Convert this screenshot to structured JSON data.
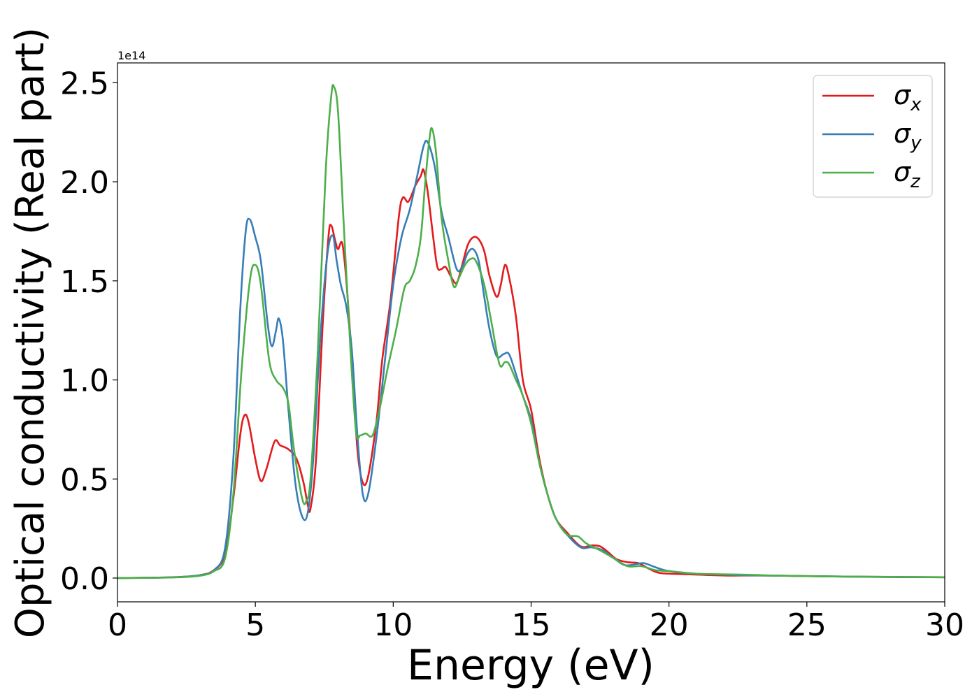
{
  "chart_data": {
    "type": "line",
    "xlabel": "Energy (eV)",
    "ylabel": "Optical conductivity (Real part)",
    "offset_label": "1e14",
    "scale": 100000000000000.0,
    "xlim": [
      0,
      30
    ],
    "ylim": [
      -0.12,
      2.6
    ],
    "xticks": [
      0,
      5,
      10,
      15,
      20,
      25,
      30
    ],
    "xtick_labels": [
      "0",
      "5",
      "10",
      "15",
      "20",
      "25",
      "30"
    ],
    "yticks": [
      0.0,
      0.5,
      1.0,
      1.5,
      2.0,
      2.5
    ],
    "ytick_labels": [
      "0.0",
      "0.5",
      "1.0",
      "1.5",
      "2.0",
      "2.5"
    ],
    "grid": false,
    "legend_position": "top-right",
    "series": [
      {
        "name": "σx",
        "label_base": "σ",
        "label_sub": "x",
        "color": "#e41a1c",
        "points": [
          [
            0,
            0
          ],
          [
            2,
            0.004
          ],
          [
            3,
            0.015
          ],
          [
            3.5,
            0.04
          ],
          [
            3.9,
            0.12
          ],
          [
            4.2,
            0.4
          ],
          [
            4.45,
            0.72
          ],
          [
            4.6,
            0.82
          ],
          [
            4.75,
            0.79
          ],
          [
            5.0,
            0.6
          ],
          [
            5.2,
            0.49
          ],
          [
            5.4,
            0.55
          ],
          [
            5.7,
            0.69
          ],
          [
            5.9,
            0.67
          ],
          [
            6.2,
            0.65
          ],
          [
            6.5,
            0.6
          ],
          [
            6.75,
            0.48
          ],
          [
            6.9,
            0.37
          ],
          [
            7.0,
            0.35
          ],
          [
            7.2,
            0.6
          ],
          [
            7.45,
            1.3
          ],
          [
            7.65,
            1.72
          ],
          [
            7.75,
            1.78
          ],
          [
            7.9,
            1.7
          ],
          [
            8.0,
            1.66
          ],
          [
            8.15,
            1.69
          ],
          [
            8.3,
            1.5
          ],
          [
            8.5,
            1.1
          ],
          [
            8.7,
            0.65
          ],
          [
            8.9,
            0.48
          ],
          [
            9.1,
            0.52
          ],
          [
            9.4,
            0.8
          ],
          [
            9.6,
            1.1
          ],
          [
            9.9,
            1.4
          ],
          [
            10.2,
            1.82
          ],
          [
            10.35,
            1.92
          ],
          [
            10.55,
            1.9
          ],
          [
            10.8,
            1.98
          ],
          [
            11.0,
            2.03
          ],
          [
            11.1,
            2.06
          ],
          [
            11.25,
            1.95
          ],
          [
            11.45,
            1.72
          ],
          [
            11.6,
            1.57
          ],
          [
            11.75,
            1.56
          ],
          [
            11.9,
            1.57
          ],
          [
            12.1,
            1.52
          ],
          [
            12.3,
            1.49
          ],
          [
            12.5,
            1.58
          ],
          [
            12.7,
            1.68
          ],
          [
            12.9,
            1.72
          ],
          [
            13.1,
            1.71
          ],
          [
            13.3,
            1.65
          ],
          [
            13.5,
            1.52
          ],
          [
            13.75,
            1.42
          ],
          [
            13.9,
            1.48
          ],
          [
            14.05,
            1.58
          ],
          [
            14.2,
            1.52
          ],
          [
            14.45,
            1.32
          ],
          [
            14.7,
            1.0
          ],
          [
            15.0,
            0.85
          ],
          [
            15.3,
            0.6
          ],
          [
            15.6,
            0.42
          ],
          [
            15.9,
            0.3
          ],
          [
            16.3,
            0.23
          ],
          [
            16.8,
            0.16
          ],
          [
            17.2,
            0.165
          ],
          [
            17.5,
            0.16
          ],
          [
            17.8,
            0.13
          ],
          [
            18.1,
            0.095
          ],
          [
            18.5,
            0.08
          ],
          [
            18.9,
            0.075
          ],
          [
            19.3,
            0.045
          ],
          [
            19.7,
            0.025
          ],
          [
            20.5,
            0.02
          ],
          [
            22,
            0.013
          ],
          [
            23,
            0.013
          ],
          [
            24,
            0.012
          ],
          [
            26,
            0.008
          ],
          [
            28,
            0.006
          ],
          [
            30,
            0.004
          ]
        ]
      },
      {
        "name": "σy",
        "label_base": "σ",
        "label_sub": "y",
        "color": "#377eb8",
        "points": [
          [
            0,
            0
          ],
          [
            2,
            0.004
          ],
          [
            3,
            0.015
          ],
          [
            3.5,
            0.04
          ],
          [
            3.9,
            0.15
          ],
          [
            4.2,
            0.6
          ],
          [
            4.45,
            1.35
          ],
          [
            4.65,
            1.75
          ],
          [
            4.8,
            1.81
          ],
          [
            5.0,
            1.72
          ],
          [
            5.2,
            1.6
          ],
          [
            5.45,
            1.28
          ],
          [
            5.6,
            1.17
          ],
          [
            5.75,
            1.25
          ],
          [
            5.85,
            1.31
          ],
          [
            6.0,
            1.2
          ],
          [
            6.2,
            0.85
          ],
          [
            6.45,
            0.48
          ],
          [
            6.7,
            0.31
          ],
          [
            6.9,
            0.33
          ],
          [
            7.1,
            0.6
          ],
          [
            7.35,
            1.2
          ],
          [
            7.6,
            1.62
          ],
          [
            7.8,
            1.73
          ],
          [
            7.95,
            1.6
          ],
          [
            8.1,
            1.48
          ],
          [
            8.3,
            1.37
          ],
          [
            8.5,
            1.15
          ],
          [
            8.7,
            0.72
          ],
          [
            8.9,
            0.42
          ],
          [
            9.1,
            0.43
          ],
          [
            9.4,
            0.72
          ],
          [
            9.7,
            1.1
          ],
          [
            10.0,
            1.48
          ],
          [
            10.3,
            1.72
          ],
          [
            10.6,
            1.86
          ],
          [
            10.9,
            2.05
          ],
          [
            11.1,
            2.18
          ],
          [
            11.25,
            2.2
          ],
          [
            11.5,
            2.08
          ],
          [
            11.75,
            1.85
          ],
          [
            12.0,
            1.72
          ],
          [
            12.3,
            1.56
          ],
          [
            12.5,
            1.57
          ],
          [
            12.7,
            1.64
          ],
          [
            12.9,
            1.66
          ],
          [
            13.1,
            1.6
          ],
          [
            13.3,
            1.42
          ],
          [
            13.5,
            1.25
          ],
          [
            13.75,
            1.12
          ],
          [
            14.0,
            1.13
          ],
          [
            14.2,
            1.13
          ],
          [
            14.45,
            1.03
          ],
          [
            14.7,
            0.92
          ],
          [
            15.0,
            0.8
          ],
          [
            15.3,
            0.58
          ],
          [
            15.6,
            0.42
          ],
          [
            15.9,
            0.3
          ],
          [
            16.3,
            0.22
          ],
          [
            16.8,
            0.155
          ],
          [
            17.2,
            0.155
          ],
          [
            17.6,
            0.14
          ],
          [
            18.0,
            0.1
          ],
          [
            18.4,
            0.065
          ],
          [
            18.8,
            0.07
          ],
          [
            19.1,
            0.075
          ],
          [
            19.5,
            0.055
          ],
          [
            20.0,
            0.035
          ],
          [
            21,
            0.022
          ],
          [
            22.5,
            0.015
          ],
          [
            24,
            0.012
          ],
          [
            26,
            0.008
          ],
          [
            28,
            0.005
          ],
          [
            30,
            0.004
          ]
        ]
      },
      {
        "name": "σz",
        "label_base": "σ",
        "label_sub": "z",
        "color": "#4daf4a",
        "points": [
          [
            0,
            0
          ],
          [
            2,
            0.003
          ],
          [
            3,
            0.012
          ],
          [
            3.5,
            0.035
          ],
          [
            3.9,
            0.1
          ],
          [
            4.2,
            0.42
          ],
          [
            4.5,
            1.05
          ],
          [
            4.8,
            1.5
          ],
          [
            5.0,
            1.58
          ],
          [
            5.2,
            1.48
          ],
          [
            5.5,
            1.1
          ],
          [
            5.75,
            1.0
          ],
          [
            6.0,
            0.96
          ],
          [
            6.2,
            0.88
          ],
          [
            6.4,
            0.65
          ],
          [
            6.7,
            0.4
          ],
          [
            6.85,
            0.39
          ],
          [
            7.0,
            0.5
          ],
          [
            7.25,
            1.1
          ],
          [
            7.55,
            2.05
          ],
          [
            7.75,
            2.43
          ],
          [
            7.85,
            2.48
          ],
          [
            8.0,
            2.35
          ],
          [
            8.2,
            1.8
          ],
          [
            8.45,
            1.15
          ],
          [
            8.65,
            0.74
          ],
          [
            8.8,
            0.72
          ],
          [
            9.0,
            0.73
          ],
          [
            9.25,
            0.72
          ],
          [
            9.5,
            0.85
          ],
          [
            9.8,
            1.06
          ],
          [
            10.1,
            1.25
          ],
          [
            10.4,
            1.46
          ],
          [
            10.6,
            1.5
          ],
          [
            10.8,
            1.57
          ],
          [
            11.0,
            1.72
          ],
          [
            11.15,
            1.98
          ],
          [
            11.3,
            2.2
          ],
          [
            11.4,
            2.27
          ],
          [
            11.55,
            2.15
          ],
          [
            11.75,
            1.82
          ],
          [
            12.0,
            1.6
          ],
          [
            12.2,
            1.47
          ],
          [
            12.4,
            1.52
          ],
          [
            12.6,
            1.58
          ],
          [
            12.8,
            1.61
          ],
          [
            13.0,
            1.6
          ],
          [
            13.3,
            1.48
          ],
          [
            13.55,
            1.3
          ],
          [
            13.85,
            1.08
          ],
          [
            14.05,
            1.09
          ],
          [
            14.2,
            1.08
          ],
          [
            14.45,
            1.0
          ],
          [
            14.7,
            0.92
          ],
          [
            15.0,
            0.78
          ],
          [
            15.3,
            0.58
          ],
          [
            15.6,
            0.42
          ],
          [
            15.9,
            0.3
          ],
          [
            16.3,
            0.22
          ],
          [
            16.7,
            0.21
          ],
          [
            17.0,
            0.175
          ],
          [
            17.5,
            0.14
          ],
          [
            18.0,
            0.1
          ],
          [
            18.5,
            0.06
          ],
          [
            19.0,
            0.06
          ],
          [
            19.5,
            0.04
          ],
          [
            20.0,
            0.035
          ],
          [
            21,
            0.022
          ],
          [
            22.5,
            0.018
          ],
          [
            24,
            0.012
          ],
          [
            26,
            0.008
          ],
          [
            28,
            0.006
          ],
          [
            30,
            0.004
          ]
        ]
      }
    ]
  }
}
